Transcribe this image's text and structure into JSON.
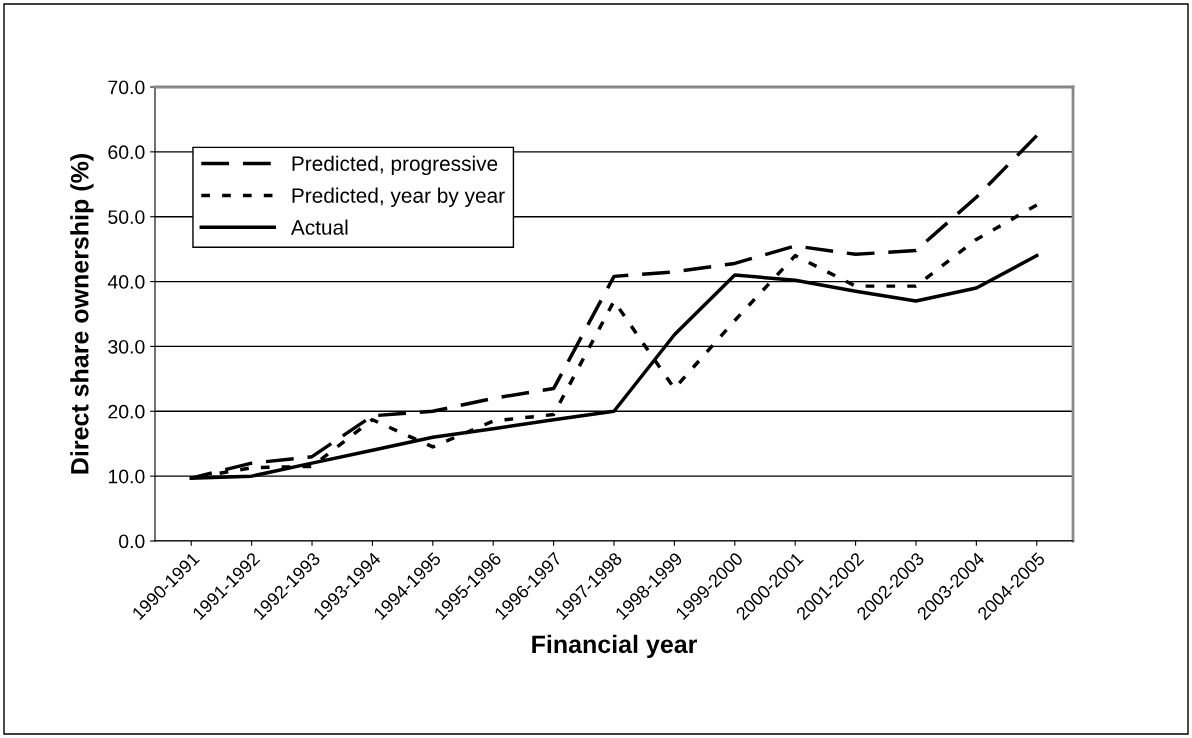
{
  "chart_data": {
    "type": "line",
    "xlabel": "Financial year",
    "ylabel": "Direct share ownership (%)",
    "categories": [
      "1990-1991",
      "1991-1992",
      "1992-1993",
      "1993-1994",
      "1994-1995",
      "1995-1996",
      "1996-1997",
      "1997-1998",
      "1998-1999",
      "1999-2000",
      "2000-2001",
      "2001-2002",
      "2002-2003",
      "2003-2004",
      "2004-2005"
    ],
    "series": [
      {
        "name": "Predicted, progressive",
        "color": "#000000",
        "line_style": "dashed",
        "values": [
          9.7,
          12,
          13,
          19.3,
          20,
          22,
          23.5,
          40.8,
          41.5,
          42.8,
          45.5,
          44.2,
          44.8,
          53,
          62.5
        ]
      },
      {
        "name": "Predicted, year by year",
        "color": "#000000",
        "line_style": "dotted",
        "values": [
          9.7,
          11.3,
          11.5,
          18.7,
          14.5,
          18.5,
          19.5,
          37,
          23.5,
          34,
          44,
          39.3,
          39.3,
          46.5,
          51.8
        ]
      },
      {
        "name": "Actual",
        "color": "#000000",
        "line_style": "solid",
        "values": [
          9.7,
          10,
          12,
          14,
          16,
          17.3,
          18.7,
          20,
          31.8,
          41,
          40.2,
          38.5,
          37,
          39,
          44
        ]
      }
    ],
    "ylim": [
      0,
      70
    ],
    "yticks": [
      {
        "value": 0,
        "label": "0.0"
      },
      {
        "value": 10,
        "label": "10.0"
      },
      {
        "value": 20,
        "label": "20.0"
      },
      {
        "value": 30,
        "label": "30.0"
      },
      {
        "value": 40,
        "label": "40.0"
      },
      {
        "value": 50,
        "label": "50.0"
      },
      {
        "value": 60,
        "label": "60.0"
      },
      {
        "value": 70,
        "label": "70.0"
      }
    ],
    "grid": "y",
    "legend": "top left",
    "marker": "none"
  }
}
